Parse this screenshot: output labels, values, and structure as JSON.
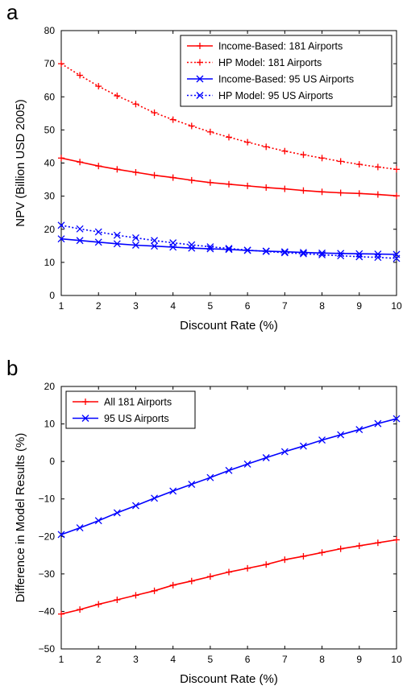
{
  "chart_data": [
    {
      "panel": "a",
      "type": "line",
      "xlabel": "Discount Rate (%)",
      "ylabel": "NPV (Billion USD 2005)",
      "xlim": [
        1,
        10
      ],
      "ylim": [
        0,
        80
      ],
      "xticks": [
        1,
        2,
        3,
        4,
        5,
        6,
        7,
        8,
        9,
        10
      ],
      "yticks": [
        0,
        10,
        20,
        30,
        40,
        50,
        60,
        70,
        80
      ],
      "legend_position": "top-right",
      "x": [
        1,
        1.5,
        2,
        2.5,
        3,
        3.5,
        4,
        4.5,
        5,
        5.5,
        6,
        6.5,
        7,
        7.5,
        8,
        8.5,
        9,
        9.5,
        10
      ],
      "series": [
        {
          "name": "Income-Based: 181 Airports",
          "color": "#ff0000",
          "style": "solid",
          "marker": "plus",
          "values": [
            41.5,
            40.3,
            39.1,
            38.1,
            37.2,
            36.3,
            35.6,
            34.8,
            34.1,
            33.6,
            33.1,
            32.6,
            32.2,
            31.7,
            31.3,
            31.0,
            30.8,
            30.5,
            30.1
          ]
        },
        {
          "name": "HP Model: 181 Airports",
          "color": "#ff0000",
          "style": "dotted",
          "marker": "plus",
          "values": [
            70.0,
            66.5,
            63.2,
            60.3,
            57.8,
            55.2,
            53.1,
            51.2,
            49.4,
            47.8,
            46.3,
            44.9,
            43.6,
            42.5,
            41.5,
            40.5,
            39.6,
            38.8,
            38.1
          ]
        },
        {
          "name": "Income-Based: 95 US Airports",
          "color": "#0000ff",
          "style": "solid",
          "marker": "x",
          "values": [
            17.1,
            16.6,
            16.1,
            15.6,
            15.2,
            14.9,
            14.6,
            14.3,
            14.1,
            13.9,
            13.6,
            13.4,
            13.2,
            13.0,
            12.8,
            12.7,
            12.6,
            12.5,
            12.4
          ]
        },
        {
          "name": "HP Model: 95 US Airports",
          "color": "#0000ff",
          "style": "dotted",
          "marker": "x",
          "values": [
            21.2,
            20.1,
            19.2,
            18.2,
            17.4,
            16.6,
            15.9,
            15.3,
            14.7,
            14.2,
            13.7,
            13.3,
            12.9,
            12.6,
            12.3,
            12.0,
            11.7,
            11.5,
            11.2
          ]
        }
      ]
    },
    {
      "panel": "b",
      "type": "line",
      "xlabel": "Discount Rate (%)",
      "ylabel": "Difference in Model Results (%)",
      "xlim": [
        1,
        10
      ],
      "ylim": [
        -50,
        20
      ],
      "xticks": [
        1,
        2,
        3,
        4,
        5,
        6,
        7,
        8,
        9,
        10
      ],
      "yticks": [
        -50,
        -40,
        -30,
        -20,
        -10,
        0,
        10,
        20
      ],
      "legend_position": "top-left",
      "x": [
        1,
        1.5,
        2,
        2.5,
        3,
        3.5,
        4,
        4.5,
        5,
        5.5,
        6,
        6.5,
        7,
        7.5,
        8,
        8.5,
        9,
        9.5,
        10
      ],
      "series": [
        {
          "name": "All 181 Airports",
          "color": "#ff0000",
          "style": "solid",
          "marker": "plus",
          "values": [
            -40.7,
            -39.5,
            -38.1,
            -36.9,
            -35.7,
            -34.5,
            -33.0,
            -31.9,
            -30.7,
            -29.5,
            -28.5,
            -27.5,
            -26.2,
            -25.3,
            -24.3,
            -23.3,
            -22.5,
            -21.7,
            -20.9
          ]
        },
        {
          "name": "95 US Airports",
          "color": "#0000ff",
          "style": "solid",
          "marker": "x",
          "values": [
            -19.5,
            -17.7,
            -15.8,
            -13.7,
            -11.8,
            -9.8,
            -7.9,
            -6.1,
            -4.3,
            -2.4,
            -0.7,
            1.0,
            2.6,
            4.1,
            5.7,
            7.1,
            8.5,
            10.1,
            11.4
          ]
        }
      ]
    }
  ]
}
